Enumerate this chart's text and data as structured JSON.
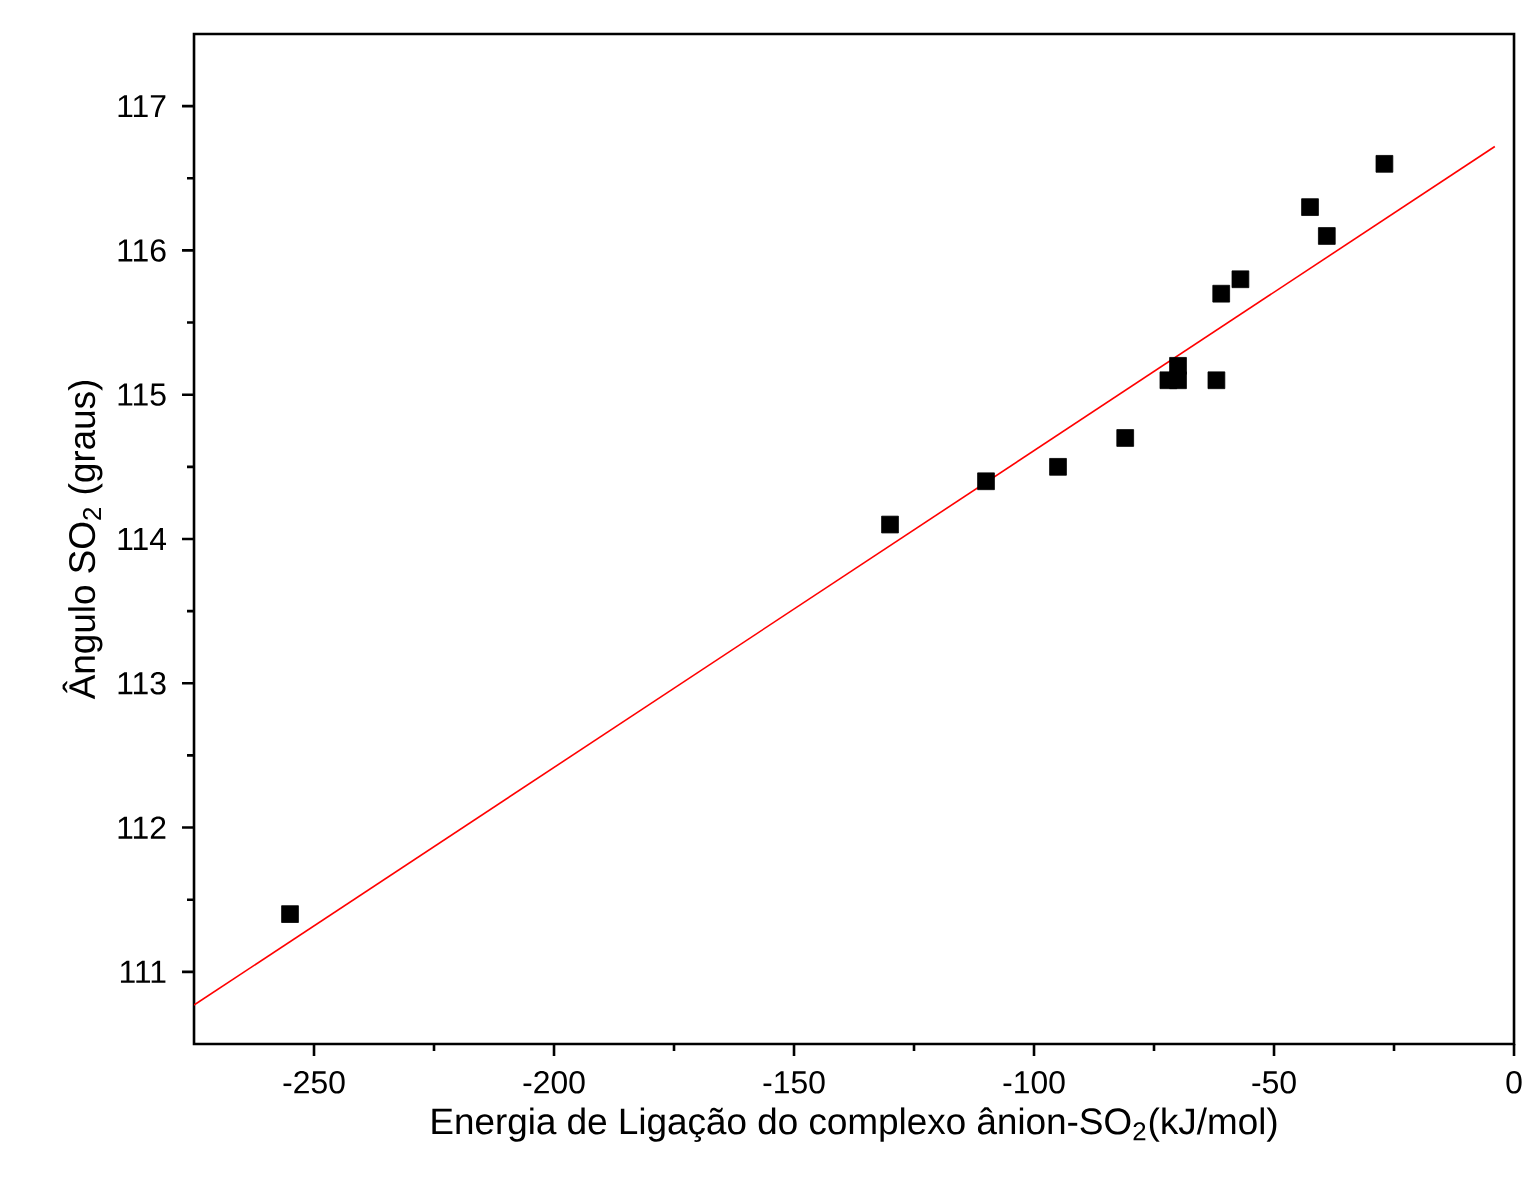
{
  "chart_data": {
    "type": "scatter",
    "xlabel": "Energia de Ligação do complexo ânion-SO$_{2}$(kJ/mol)",
    "ylabel": "Ângulo SO$_{2}$ (graus)",
    "xlim": [
      -275,
      0
    ],
    "ylim": [
      110.5,
      117.5
    ],
    "xticks": [
      -250,
      -200,
      -150,
      -100,
      -50,
      0
    ],
    "yticks": [
      111,
      112,
      113,
      114,
      115,
      116,
      117
    ],
    "grid": false,
    "marker": "square",
    "series": [
      {
        "color": "#000000",
        "x": [
          -255,
          -130,
          -110,
          -95,
          -81,
          -72,
          -70,
          -70,
          -62,
          -61,
          -57,
          -42.5,
          -39,
          -27
        ],
        "values": [
          111.4,
          114.1,
          114.4,
          114.5,
          114.7,
          115.1,
          115.2,
          115.1,
          115.1,
          115.7,
          115.8,
          116.3,
          116.1,
          116.6
        ]
      },
      {
        "type": "line",
        "color": "#ff0000",
        "marker": "none",
        "x": [
          -275,
          -4
        ],
        "values": [
          110.77,
          116.72
        ]
      }
    ]
  }
}
